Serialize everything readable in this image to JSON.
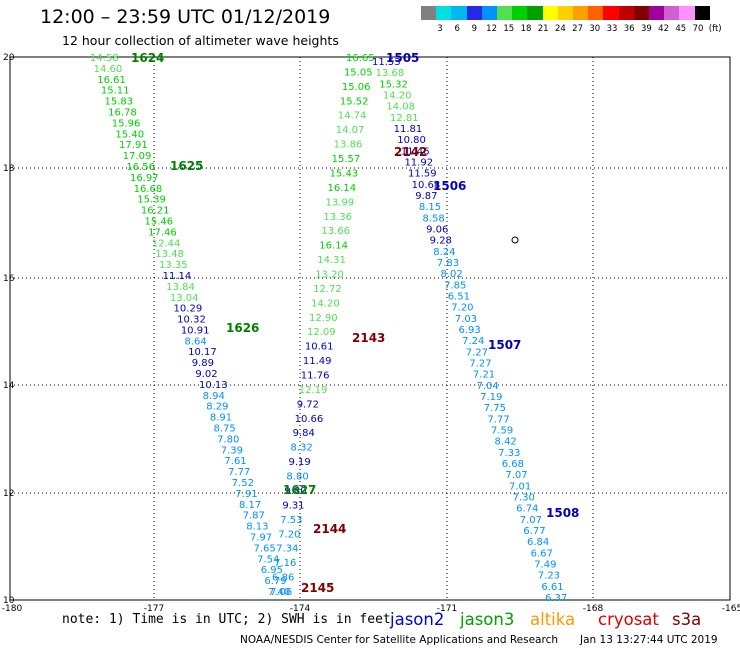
{
  "header": {
    "title": "12:00 – 23:59 UTC 01/12/2019",
    "subtitle": "12 hour collection of altimeter wave heights"
  },
  "colorbar": {
    "colors": [
      "#808080",
      "#00e0e0",
      "#00b8f0",
      "#2828e8",
      "#0090ff",
      "#50e050",
      "#00d000",
      "#00a000",
      "#ffff00",
      "#ffd000",
      "#ffa000",
      "#ff6000",
      "#ff0000",
      "#c00000",
      "#800000",
      "#a000a0",
      "#d060d0",
      "#ff90ff",
      "#000000"
    ],
    "labels": [
      "3",
      "6",
      "9",
      "12",
      "15",
      "18",
      "21",
      "24",
      "27",
      "30",
      "33",
      "36",
      "39",
      "42",
      "45",
      "70",
      "(ft)"
    ]
  },
  "map": {
    "lon_ticks": [
      "-180",
      "-177",
      "-174",
      "-171",
      "-168",
      "-165"
    ],
    "lat_ticks": [
      "20",
      "18",
      "16",
      "14",
      "12",
      "10"
    ],
    "pass_labels": [
      {
        "text": "1624",
        "color": "#008000"
      },
      {
        "text": "1625",
        "color": "#008000"
      },
      {
        "text": "1626",
        "color": "#008000"
      },
      {
        "text": "1627",
        "color": "#008000"
      },
      {
        "text": "1505",
        "color": "#0000c0"
      },
      {
        "text": "1506",
        "color": "#0000c0"
      },
      {
        "text": "1507",
        "color": "#0000c0"
      },
      {
        "text": "1508",
        "color": "#0000c0"
      },
      {
        "text": "2142",
        "color": "#800000"
      },
      {
        "text": "2143",
        "color": "#800000"
      },
      {
        "text": "2144",
        "color": "#800000"
      },
      {
        "text": "2145",
        "color": "#800000"
      }
    ],
    "tracks": [
      {
        "values": [
          "14.58",
          "14.60",
          "16.61",
          "15.11",
          "15.83",
          "16.78",
          "15.96",
          "15.40",
          "17.91",
          "17.09",
          "16.56",
          "16.97",
          "16.68",
          "15.39",
          "16.21",
          "15.46",
          "17.46",
          "12.44",
          "13.48",
          "13.35",
          "11.14",
          "13.84",
          "13.04",
          "10.29",
          "10.32",
          "10.91",
          "8.64",
          "10.17",
          "9.89",
          "9.02",
          "10.13",
          "8.94",
          "8.29",
          "8.91",
          "8.75",
          "7.80",
          "7.39",
          "7.61",
          "7.77",
          "7.52",
          "7.91",
          "8.17",
          "7.87",
          "8.13",
          "7.97",
          "7.65",
          "7.54",
          "6.95",
          "6.79",
          "7.40"
        ],
        "colors": [
          "#50e050",
          "#50e050",
          "#00d000",
          "#00d000",
          "#00d000",
          "#00d000",
          "#00d000",
          "#00d000",
          "#00d000",
          "#00d000",
          "#00d000",
          "#00d000",
          "#00d000",
          "#00d000",
          "#00d000",
          "#00d000",
          "#00d000",
          "#50e050",
          "#50e050",
          "#50e050",
          "#0000c0",
          "#50e050",
          "#50e050",
          "#0000c0",
          "#0000c0",
          "#0000c0",
          "#0090ff",
          "#0000c0",
          "#0000c0",
          "#0000c0",
          "#0000c0",
          "#0090ff",
          "#0090ff",
          "#0090ff",
          "#0090ff",
          "#0090ff",
          "#0090ff",
          "#0090ff",
          "#0090ff",
          "#0090ff",
          "#0090ff",
          "#0090ff",
          "#0090ff",
          "#0090ff",
          "#0090ff",
          "#0090ff",
          "#0090ff",
          "#0090ff",
          "#0090ff",
          "#0090ff"
        ]
      },
      {
        "values": [
          "16.65",
          "15.05",
          "15.06",
          "15.52",
          "14.74",
          "14.07",
          "13.86",
          "15.57",
          "15.43",
          "16.14",
          "13.99",
          "13.36",
          "13.66",
          "16.14",
          "14.31",
          "13.20",
          "12.72",
          "14.20",
          "12.90",
          "12.09",
          "10.61",
          "11.49",
          "11.76",
          "12.19",
          "9.72",
          "10.66",
          "9.84",
          "8.32",
          "9.19",
          "8.80",
          "9.80",
          "9.31",
          "7.53",
          "7.20",
          "7.34",
          "7.16",
          "6.86",
          "7.06"
        ],
        "colors": [
          "#00d000",
          "#00d000",
          "#00d000",
          "#00d000",
          "#50e050",
          "#50e050",
          "#50e050",
          "#00d000",
          "#00d000",
          "#00d000",
          "#50e050",
          "#50e050",
          "#50e050",
          "#00d000",
          "#50e050",
          "#50e050",
          "#50e050",
          "#50e050",
          "#50e050",
          "#50e050",
          "#0000c0",
          "#0000c0",
          "#0000c0",
          "#50e050",
          "#0000c0",
          "#0000c0",
          "#0000c0",
          "#0090ff",
          "#0000c0",
          "#0090ff",
          "#0000c0",
          "#0000c0",
          "#0090ff",
          "#0090ff",
          "#0090ff",
          "#0090ff",
          "#0090ff",
          "#0090ff"
        ]
      },
      {
        "values": [
          "11.53",
          "13.68",
          "15.32",
          "14.20",
          "14.08",
          "12.81",
          "11.81",
          "10.80",
          "11.46",
          "11.92",
          "11.59",
          "10.68",
          "9.87",
          "8.15",
          "8.58",
          "9.06",
          "9.28",
          "8.24",
          "7.83",
          "8.02",
          "7.85",
          "6.51",
          "7.20",
          "7.03",
          "6.93",
          "7.24",
          "7.27",
          "7.27",
          "7.21",
          "7.04",
          "7.19",
          "7.75",
          "7.77",
          "7.59",
          "8.42",
          "7.33",
          "6.68",
          "7.07",
          "7.01",
          "7.30",
          "6.74",
          "7.07",
          "6.77",
          "6.84",
          "6.67",
          "7.49",
          "7.23",
          "6.61",
          "6.37"
        ],
        "colors": [
          "#0000c0",
          "#50e050",
          "#00d000",
          "#50e050",
          "#50e050",
          "#50e050",
          "#0000c0",
          "#0000c0",
          "#0000c0",
          "#0000c0",
          "#0000c0",
          "#0000c0",
          "#0000c0",
          "#0090ff",
          "#0090ff",
          "#0000c0",
          "#0000c0",
          "#0090ff",
          "#0090ff",
          "#0090ff",
          "#0090ff",
          "#0090ff",
          "#0090ff",
          "#0090ff",
          "#0090ff",
          "#0090ff",
          "#0090ff",
          "#0090ff",
          "#0090ff",
          "#0090ff",
          "#0090ff",
          "#0090ff",
          "#0090ff",
          "#0090ff",
          "#0090ff",
          "#0090ff",
          "#0090ff",
          "#0090ff",
          "#0090ff",
          "#0090ff",
          "#0090ff",
          "#0090ff",
          "#0090ff",
          "#0090ff",
          "#0090ff",
          "#0090ff",
          "#0090ff",
          "#0090ff",
          "#0090ff"
        ]
      }
    ]
  },
  "footer": {
    "note": "note: 1) Time is in UTC; 2) SWH is in feet",
    "legend": [
      {
        "label": "jason2",
        "color": "#0000e0"
      },
      {
        "label": "jason3",
        "color": "#00a000"
      },
      {
        "label": "altika",
        "color": "#ff9900"
      },
      {
        "label": "cryosat",
        "color": "#e00000"
      },
      {
        "label": "s3a",
        "color": "#800000"
      }
    ],
    "org": "NOAA/NESDIS Center for Satellite Applications and Research",
    "timestamp": "Jan 13 13:27:44 UTC 2019"
  }
}
